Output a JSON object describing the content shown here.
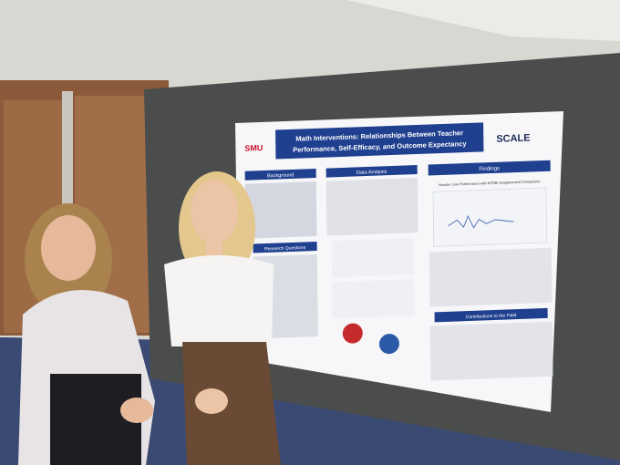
{
  "poster": {
    "logo_left": "SMU",
    "title_lines": [
      "Math Interventions: Relationships Between Teacher",
      "Performance, Self-Efficacy, and Outcome Expectancy"
    ],
    "logo_right": "SCALE",
    "sections": {
      "background": "Background",
      "research_questions": "Research Questions",
      "data_analysis": "Data Analysis",
      "findings": "Findings",
      "chart_title": "Number Line Performance with MTSBI Disagreement Comparison",
      "contributions": "Contributions to the Field"
    }
  }
}
